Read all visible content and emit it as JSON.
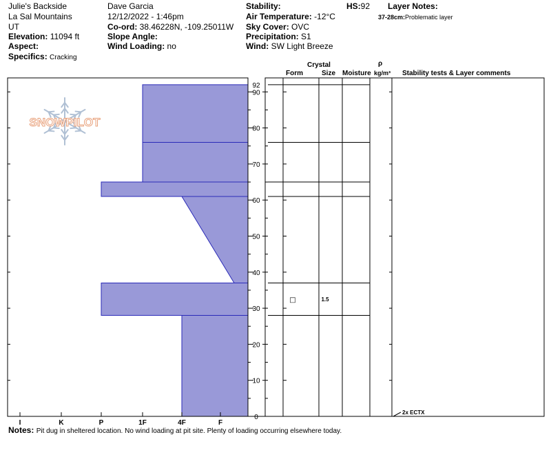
{
  "header": {
    "location_name": "Julie's Backside",
    "range": "La Sal Mountains",
    "state": "UT",
    "elevation_label": "Elevation:",
    "elevation_value": "11094 ft",
    "aspect_label": "Aspect:",
    "aspect_value": "",
    "specifics_label": "Specifics:",
    "specifics_value": "Cracking",
    "observer": "Dave Garcia",
    "datetime": "12/12/2022 - 1:46pm",
    "coord_label": "Co-ord:",
    "coord_value": "38.46228N, -109.25011W",
    "slope_label": "Slope Angle:",
    "slope_value": "",
    "wind_loading_label": "Wind Loading:",
    "wind_loading_value": "no",
    "stability_label": "Stability:",
    "stability_value": "",
    "air_temp_label": "Air Temperature:",
    "air_temp_value": "-12°C",
    "sky_label": "Sky Cover:",
    "sky_value": "OVC",
    "precip_label": "Precipitation:",
    "precip_value": "S1",
    "wind_label": "Wind:",
    "wind_value": "SW Light Breeze",
    "hs_label": "HS:",
    "hs_value": "92",
    "layer_notes_label": "Layer Notes:",
    "layer_note_range": "37-28cm:",
    "layer_note_text": "Problematic layer"
  },
  "columns": {
    "crystal": "Crystal",
    "form": "Form",
    "size": "Size",
    "moisture": "Moisture",
    "rho": "ρ",
    "density_unit": "kg/m³",
    "comments": "Stability tests & Layer comments"
  },
  "logo_text": "SNOWPILOT",
  "notes_label": "Notes:",
  "notes_text": "Pit dug in sheltered location. No wind loading at pit site. Plenty of loading occurring elsewhere today.",
  "colors": {
    "layer_fill": "#9999d8",
    "layer_stroke": "#2a2ab8",
    "logo_text": "#e8a07a",
    "logo_flake": "#b0c0d4"
  },
  "chart_data": {
    "type": "snow_profile",
    "hardness_scale": [
      "I",
      "K",
      "P",
      "1F",
      "4F",
      "F"
    ],
    "depth_ticks": [
      0,
      10,
      20,
      30,
      40,
      50,
      60,
      70,
      80,
      90
    ],
    "hs": 92,
    "ylim": [
      0,
      92
    ],
    "hardness_layers": [
      {
        "top": 92,
        "bottom": 76,
        "hardness_top": "1F",
        "hardness_bottom": "1F"
      },
      {
        "top": 76,
        "bottom": 65,
        "hardness_top": "1F",
        "hardness_bottom": "1F"
      },
      {
        "top": 65,
        "bottom": 61,
        "hardness_top": "P",
        "hardness_bottom": "P"
      },
      {
        "top": 61,
        "bottom": 37,
        "hardness_top": "4F",
        "hardness_bottom": "F+"
      },
      {
        "top": 37,
        "bottom": 28,
        "hardness_top": "P",
        "hardness_bottom": "P"
      },
      {
        "top": 28,
        "bottom": 0,
        "hardness_top": "4F",
        "hardness_bottom": "4F"
      }
    ],
    "layer_boundaries": [
      92,
      76,
      65,
      61,
      37,
      28,
      0
    ],
    "crystal_records": [
      {
        "depth": 32.5,
        "form": "□",
        "size": "1.5"
      }
    ],
    "stability_tests": [
      {
        "depth": 0,
        "result": "2x ECTX"
      }
    ]
  }
}
